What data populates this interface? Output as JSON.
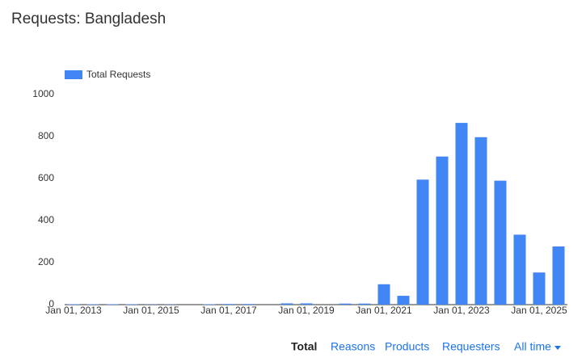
{
  "chart_data": {
    "type": "bar",
    "title": "Requests: Bangladesh",
    "categories": [
      "Jan 01, 2013",
      null,
      null,
      null,
      "Jan 01, 2015",
      null,
      null,
      null,
      "Jan 01, 2017",
      null,
      null,
      null,
      "Jan 01, 2019",
      null,
      null,
      null,
      "Jan 01, 2021",
      null,
      null,
      null,
      "Jan 01, 2023",
      null,
      null,
      null,
      "Jan 01, 2025",
      null
    ],
    "series": [
      {
        "name": "Total Requests",
        "color": "#4285f4",
        "values": [
          2,
          2,
          2,
          2,
          1,
          1,
          0,
          2,
          3,
          3,
          0,
          6,
          6,
          0,
          5,
          5,
          97,
          42,
          595,
          705,
          865,
          797,
          590,
          333,
          153,
          277
        ]
      }
    ],
    "ylim": [
      0,
      1000
    ],
    "yticks": [
      0,
      200,
      400,
      600,
      800,
      1000
    ],
    "grid": false,
    "legend": "top-left"
  },
  "tabs": [
    "Total",
    "Reasons",
    "Products",
    "Requesters",
    "All time"
  ]
}
